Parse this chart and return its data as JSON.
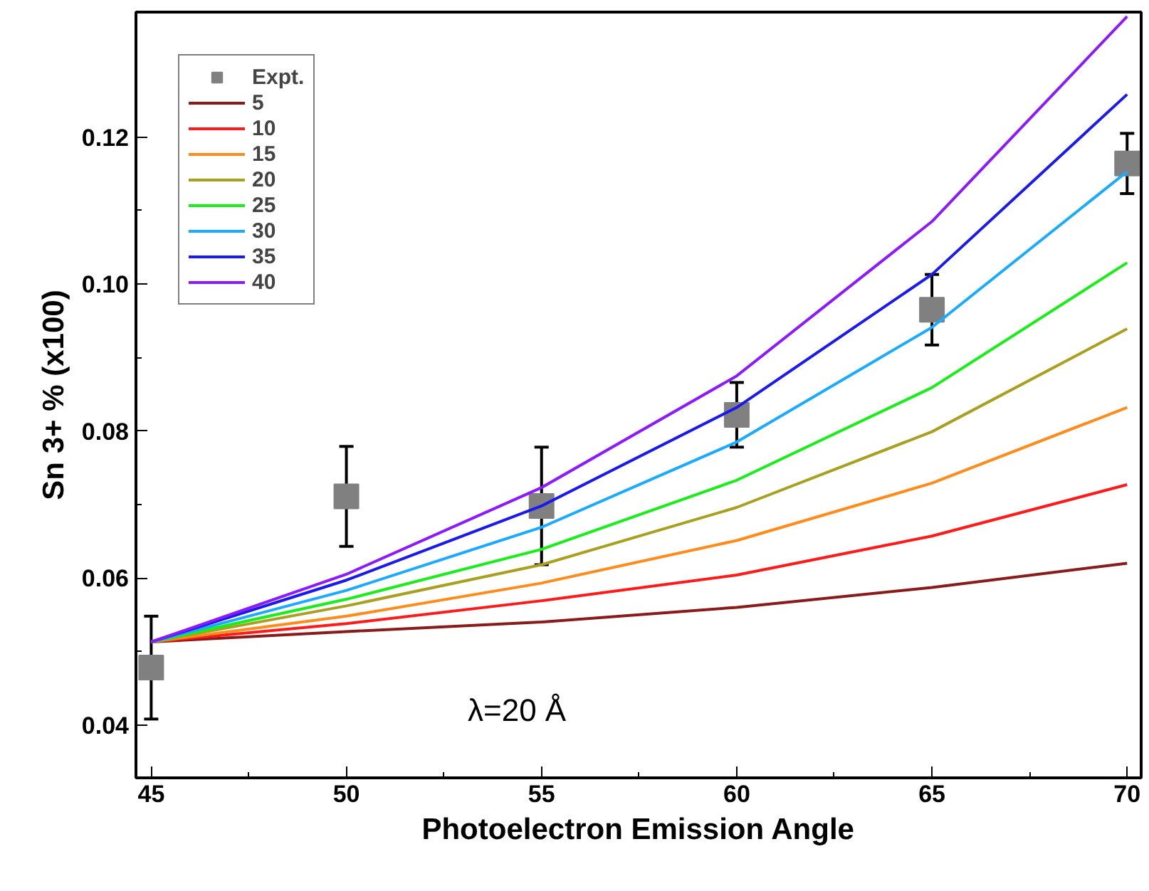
{
  "chart_data": {
    "type": "line",
    "xlabel": "Photoelectron Emission Angle",
    "ylabel": "Sn 3+ % (x100)",
    "annotations": [
      "λ=20 Å"
    ],
    "x": [
      45,
      50,
      55,
      60,
      65,
      70
    ],
    "xlim": [
      44.61,
      70.36
    ],
    "xticks": [
      45,
      50,
      55,
      60,
      65,
      70
    ],
    "ylim": [
      0.0328,
      0.137
    ],
    "yticks": [
      0.04,
      0.06,
      0.08,
      {
        "value": 0.1,
        "label": "0.10"
      },
      0.12
    ],
    "grid": false,
    "legend": "top left",
    "line_style": "solid",
    "series": [
      {
        "name": "Expt.",
        "type": "scatter",
        "marker": "square",
        "color": "#808080",
        "values": [
          0.0478,
          0.0711,
          0.0698,
          0.0822,
          0.0965,
          0.1164
        ],
        "errors": [
          0.007,
          0.0068,
          0.008,
          0.0044,
          0.0048,
          0.0041
        ]
      },
      {
        "name": "5",
        "color": "#8b1a1a",
        "values": [
          0.0513,
          0.0527,
          0.054,
          0.056,
          0.0587,
          0.062
        ]
      },
      {
        "name": "10",
        "color": "#ff1a1a",
        "values": [
          0.0513,
          0.0538,
          0.0569,
          0.0604,
          0.0657,
          0.0727
        ]
      },
      {
        "name": "15",
        "color": "#ff8c1a",
        "values": [
          0.0513,
          0.0548,
          0.0593,
          0.0651,
          0.0729,
          0.0832
        ]
      },
      {
        "name": "20",
        "color": "#aaa020",
        "values": [
          0.0513,
          0.0562,
          0.0618,
          0.0696,
          0.0799,
          0.0939
        ]
      },
      {
        "name": "25",
        "color": "#1aee1a",
        "values": [
          0.0513,
          0.0571,
          0.0639,
          0.0733,
          0.0859,
          0.1029
        ]
      },
      {
        "name": "30",
        "color": "#1aaaff",
        "values": [
          0.0513,
          0.0583,
          0.0669,
          0.0785,
          0.0941,
          0.1153
        ]
      },
      {
        "name": "35",
        "color": "#1a1aee",
        "values": [
          0.0513,
          0.0597,
          0.0698,
          0.0832,
          0.1013,
          0.1258
        ]
      },
      {
        "name": "40",
        "color": "#8c1aff",
        "values": [
          0.0513,
          0.0605,
          0.0723,
          0.0875,
          0.1085,
          0.1364
        ]
      }
    ]
  }
}
